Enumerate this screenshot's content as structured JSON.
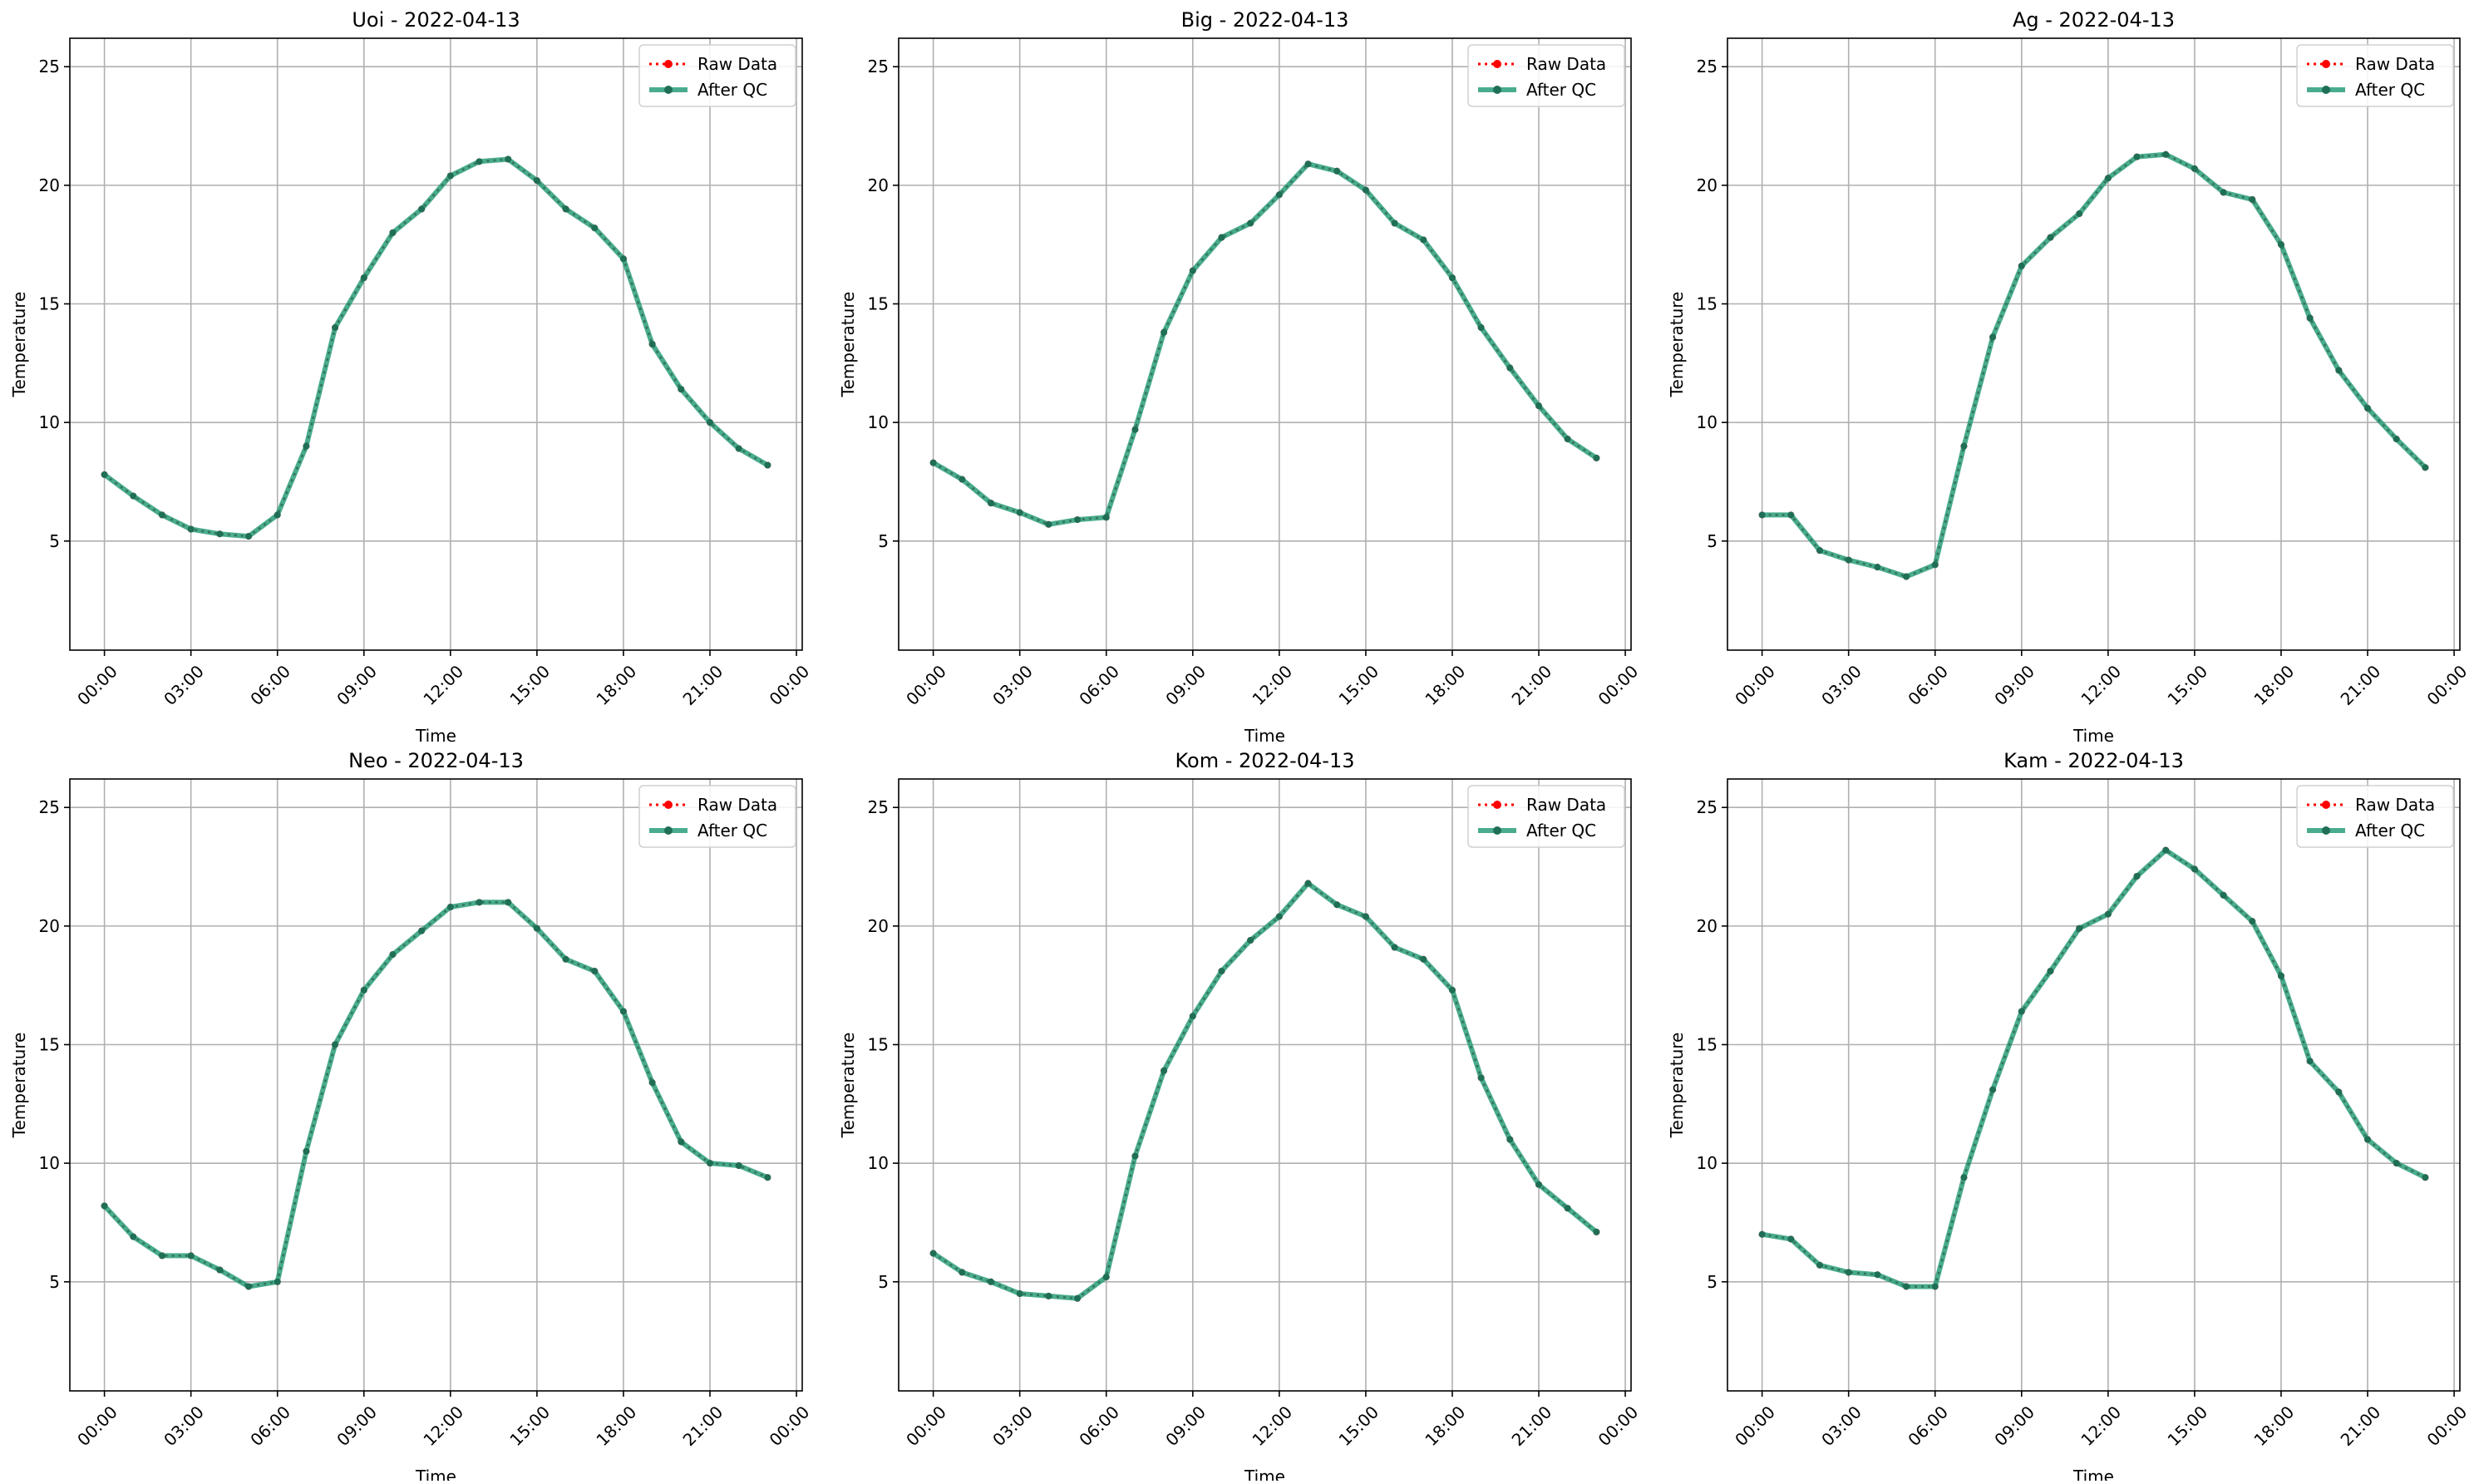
{
  "legend": {
    "raw_label": "Raw Data",
    "qc_label": "After QC"
  },
  "colors": {
    "raw": "#ff0000",
    "qc": "#2a9d7a",
    "qc_marker": "#1f6f57",
    "grid": "#b0b0b0",
    "axis": "#000000"
  },
  "chart_data": [
    {
      "type": "line",
      "title": "Uoi - 2022-04-13",
      "xlabel": "Time",
      "ylabel": "Temperature",
      "x_ticks": [
        "00:00",
        "03:00",
        "06:00",
        "09:00",
        "12:00",
        "15:00",
        "18:00",
        "21:00",
        "00:00"
      ],
      "y_ticks": [
        5,
        10,
        15,
        20,
        25
      ],
      "xlim": [
        -1.2,
        24.2
      ],
      "ylim": [
        0.4,
        26.2
      ],
      "grid": true,
      "legend_position": "top-right",
      "x_hours": [
        0,
        1,
        2,
        3,
        4,
        5,
        6,
        7,
        8,
        9,
        10,
        11,
        12,
        13,
        14,
        15,
        16,
        17,
        18,
        19,
        20,
        21,
        22,
        23
      ],
      "series": [
        {
          "name": "Raw Data",
          "values": [
            7.8,
            6.9,
            6.1,
            5.5,
            5.3,
            5.2,
            6.1,
            9.0,
            14.0,
            16.1,
            18.0,
            19.0,
            20.4,
            21.0,
            21.1,
            20.2,
            19.0,
            18.2,
            16.9,
            13.3,
            11.4,
            10.0,
            8.9,
            8.2
          ]
        },
        {
          "name": "After QC",
          "values": [
            7.8,
            6.9,
            6.1,
            5.5,
            5.3,
            5.2,
            6.1,
            9.0,
            14.0,
            16.1,
            18.0,
            19.0,
            20.4,
            21.0,
            21.1,
            20.2,
            19.0,
            18.2,
            16.9,
            13.3,
            11.4,
            10.0,
            8.9,
            8.2
          ]
        }
      ]
    },
    {
      "type": "line",
      "title": "Big - 2022-04-13",
      "xlabel": "Time",
      "ylabel": "Temperature",
      "x_ticks": [
        "00:00",
        "03:00",
        "06:00",
        "09:00",
        "12:00",
        "15:00",
        "18:00",
        "21:00",
        "00:00"
      ],
      "y_ticks": [
        5,
        10,
        15,
        20,
        25
      ],
      "xlim": [
        -1.2,
        24.2
      ],
      "ylim": [
        0.4,
        26.2
      ],
      "grid": true,
      "legend_position": "top-right",
      "x_hours": [
        0,
        1,
        2,
        3,
        4,
        5,
        6,
        7,
        8,
        9,
        10,
        11,
        12,
        13,
        14,
        15,
        16,
        17,
        18,
        19,
        20,
        21,
        22,
        23
      ],
      "series": [
        {
          "name": "Raw Data",
          "values": [
            8.3,
            7.6,
            6.6,
            6.2,
            5.7,
            5.9,
            6.0,
            9.7,
            13.8,
            16.4,
            17.8,
            18.4,
            19.6,
            20.9,
            20.6,
            19.8,
            18.4,
            17.7,
            16.1,
            14.0,
            12.3,
            10.7,
            9.3,
            8.5
          ]
        },
        {
          "name": "After QC",
          "values": [
            8.3,
            7.6,
            6.6,
            6.2,
            5.7,
            5.9,
            6.0,
            9.7,
            13.8,
            16.4,
            17.8,
            18.4,
            19.6,
            20.9,
            20.6,
            19.8,
            18.4,
            17.7,
            16.1,
            14.0,
            12.3,
            10.7,
            9.3,
            8.5
          ]
        }
      ]
    },
    {
      "type": "line",
      "title": "Ag - 2022-04-13",
      "xlabel": "Time",
      "ylabel": "Temperature",
      "x_ticks": [
        "00:00",
        "03:00",
        "06:00",
        "09:00",
        "12:00",
        "15:00",
        "18:00",
        "21:00",
        "00:00"
      ],
      "y_ticks": [
        5,
        10,
        15,
        20,
        25
      ],
      "xlim": [
        -1.2,
        24.2
      ],
      "ylim": [
        0.4,
        26.2
      ],
      "grid": true,
      "legend_position": "top-right",
      "x_hours": [
        0,
        1,
        2,
        3,
        4,
        5,
        6,
        7,
        8,
        9,
        10,
        11,
        12,
        13,
        14,
        15,
        16,
        17,
        18,
        19,
        20,
        21,
        22,
        23
      ],
      "series": [
        {
          "name": "Raw Data",
          "values": [
            6.1,
            6.1,
            4.6,
            4.2,
            3.9,
            3.5,
            4.0,
            9.0,
            13.6,
            16.6,
            17.8,
            18.8,
            20.3,
            21.2,
            21.3,
            20.7,
            19.7,
            19.4,
            17.5,
            14.4,
            12.2,
            10.6,
            9.3,
            8.1
          ]
        },
        {
          "name": "After QC",
          "values": [
            6.1,
            6.1,
            4.6,
            4.2,
            3.9,
            3.5,
            4.0,
            9.0,
            13.6,
            16.6,
            17.8,
            18.8,
            20.3,
            21.2,
            21.3,
            20.7,
            19.7,
            19.4,
            17.5,
            14.4,
            12.2,
            10.6,
            9.3,
            8.1
          ]
        }
      ]
    },
    {
      "type": "line",
      "title": "Neo - 2022-04-13",
      "xlabel": "Time",
      "ylabel": "Temperature",
      "x_ticks": [
        "00:00",
        "03:00",
        "06:00",
        "09:00",
        "12:00",
        "15:00",
        "18:00",
        "21:00",
        "00:00"
      ],
      "y_ticks": [
        5,
        10,
        15,
        20,
        25
      ],
      "xlim": [
        -1.2,
        24.2
      ],
      "ylim": [
        0.4,
        26.2
      ],
      "grid": true,
      "legend_position": "top-right",
      "x_hours": [
        0,
        1,
        2,
        3,
        4,
        5,
        6,
        7,
        8,
        9,
        10,
        11,
        12,
        13,
        14,
        15,
        16,
        17,
        18,
        19,
        20,
        21,
        22,
        23
      ],
      "series": [
        {
          "name": "Raw Data",
          "values": [
            8.2,
            6.9,
            6.1,
            6.1,
            5.5,
            4.8,
            5.0,
            10.5,
            15.0,
            17.3,
            18.8,
            19.8,
            20.8,
            21.0,
            21.0,
            19.9,
            18.6,
            18.1,
            16.4,
            13.4,
            10.9,
            10.0,
            9.9,
            9.4
          ]
        },
        {
          "name": "After QC",
          "values": [
            8.2,
            6.9,
            6.1,
            6.1,
            5.5,
            4.8,
            5.0,
            10.5,
            15.0,
            17.3,
            18.8,
            19.8,
            20.8,
            21.0,
            21.0,
            19.9,
            18.6,
            18.1,
            16.4,
            13.4,
            10.9,
            10.0,
            9.9,
            9.4
          ]
        }
      ]
    },
    {
      "type": "line",
      "title": "Kom - 2022-04-13",
      "xlabel": "Time",
      "ylabel": "Temperature",
      "x_ticks": [
        "00:00",
        "03:00",
        "06:00",
        "09:00",
        "12:00",
        "15:00",
        "18:00",
        "21:00",
        "00:00"
      ],
      "y_ticks": [
        5,
        10,
        15,
        20,
        25
      ],
      "xlim": [
        -1.2,
        24.2
      ],
      "ylim": [
        0.4,
        26.2
      ],
      "grid": true,
      "legend_position": "top-right",
      "x_hours": [
        0,
        1,
        2,
        3,
        4,
        5,
        6,
        7,
        8,
        9,
        10,
        11,
        12,
        13,
        14,
        15,
        16,
        17,
        18,
        19,
        20,
        21,
        22,
        23
      ],
      "series": [
        {
          "name": "Raw Data",
          "values": [
            6.2,
            5.4,
            5.0,
            4.5,
            4.4,
            4.3,
            5.2,
            10.3,
            13.9,
            16.2,
            18.1,
            19.4,
            20.4,
            21.8,
            20.9,
            20.4,
            19.1,
            18.6,
            17.3,
            13.6,
            11.0,
            9.1,
            8.1,
            7.1
          ]
        },
        {
          "name": "After QC",
          "values": [
            6.2,
            5.4,
            5.0,
            4.5,
            4.4,
            4.3,
            5.2,
            10.3,
            13.9,
            16.2,
            18.1,
            19.4,
            20.4,
            21.8,
            20.9,
            20.4,
            19.1,
            18.6,
            17.3,
            13.6,
            11.0,
            9.1,
            8.1,
            7.1
          ]
        }
      ]
    },
    {
      "type": "line",
      "title": "Kam - 2022-04-13",
      "xlabel": "Time",
      "ylabel": "Temperature",
      "x_ticks": [
        "00:00",
        "03:00",
        "06:00",
        "09:00",
        "12:00",
        "15:00",
        "18:00",
        "21:00",
        "00:00"
      ],
      "y_ticks": [
        5,
        10,
        15,
        20,
        25
      ],
      "xlim": [
        -1.2,
        24.2
      ],
      "ylim": [
        0.4,
        26.2
      ],
      "grid": true,
      "legend_position": "top-right",
      "x_hours": [
        0,
        1,
        2,
        3,
        4,
        5,
        6,
        7,
        8,
        9,
        10,
        11,
        12,
        13,
        14,
        15,
        16,
        17,
        18,
        19,
        20,
        21,
        22,
        23
      ],
      "series": [
        {
          "name": "Raw Data",
          "values": [
            7.0,
            6.8,
            5.7,
            5.4,
            5.3,
            4.8,
            4.8,
            9.4,
            13.1,
            16.4,
            18.1,
            19.9,
            20.5,
            22.1,
            23.2,
            22.4,
            21.3,
            20.2,
            17.9,
            14.3,
            13.0,
            11.0,
            10.0,
            9.4
          ]
        },
        {
          "name": "After QC",
          "values": [
            7.0,
            6.8,
            5.7,
            5.4,
            5.3,
            4.8,
            4.8,
            9.4,
            13.1,
            16.4,
            18.1,
            19.9,
            20.5,
            22.1,
            23.2,
            22.4,
            21.3,
            20.2,
            17.9,
            14.3,
            13.0,
            11.0,
            10.0,
            9.4
          ]
        }
      ]
    }
  ]
}
